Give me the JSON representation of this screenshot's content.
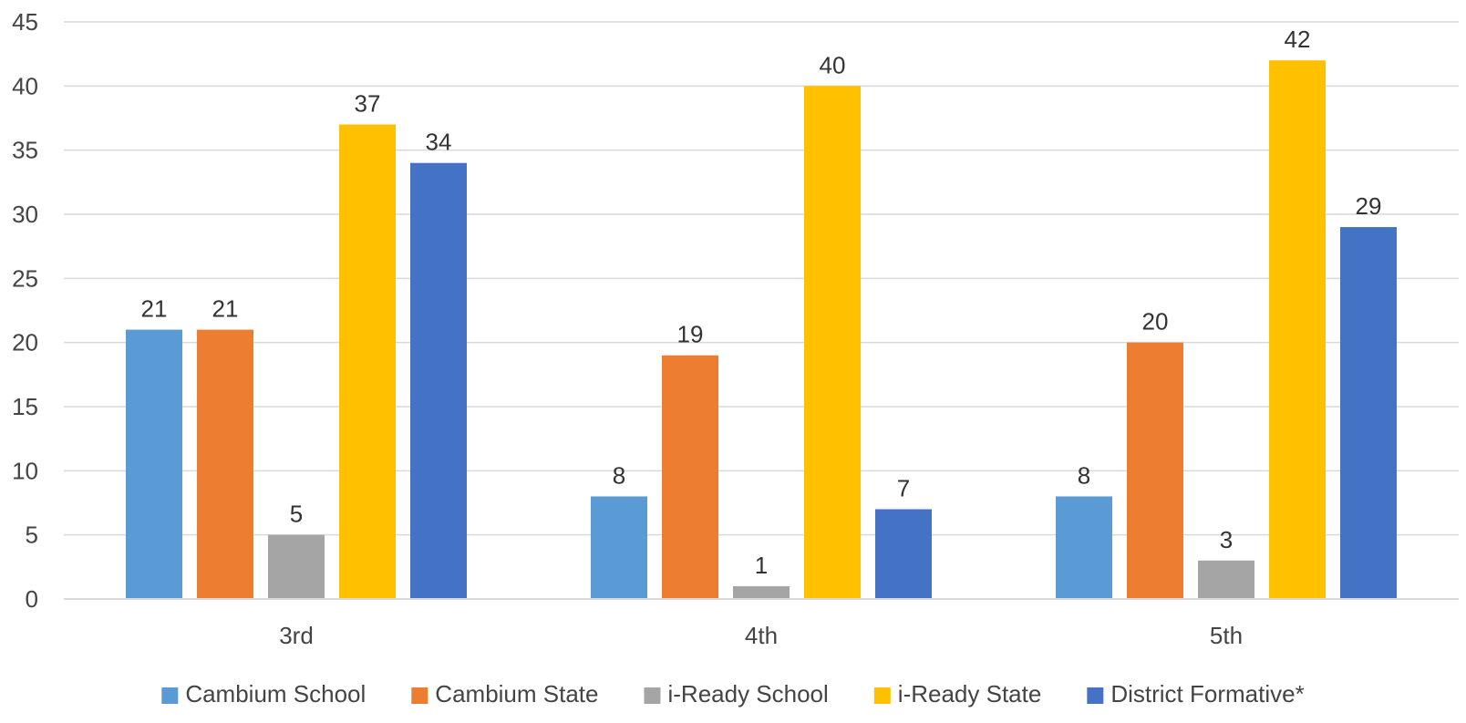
{
  "chart_data": {
    "type": "bar",
    "title": "",
    "xlabel": "",
    "ylabel": "",
    "categories": [
      "3rd",
      "4th",
      "5th"
    ],
    "ylim": [
      0,
      45
    ],
    "yticks": [
      0,
      5,
      10,
      15,
      20,
      25,
      30,
      35,
      40,
      45
    ],
    "grid": true,
    "legend_position": "bottom",
    "series": [
      {
        "name": "Cambium School",
        "color": "#5B9BD5",
        "values": [
          21,
          8,
          8
        ]
      },
      {
        "name": "Cambium State",
        "color": "#ED7D31",
        "values": [
          21,
          19,
          20
        ]
      },
      {
        "name": "i-Ready School",
        "color": "#A5A5A5",
        "values": [
          5,
          1,
          3
        ]
      },
      {
        "name": "i-Ready State",
        "color": "#FFC000",
        "values": [
          37,
          40,
          42
        ]
      },
      {
        "name": "District Formative*",
        "color": "#4472C4",
        "values": [
          34,
          7,
          29
        ]
      }
    ]
  }
}
